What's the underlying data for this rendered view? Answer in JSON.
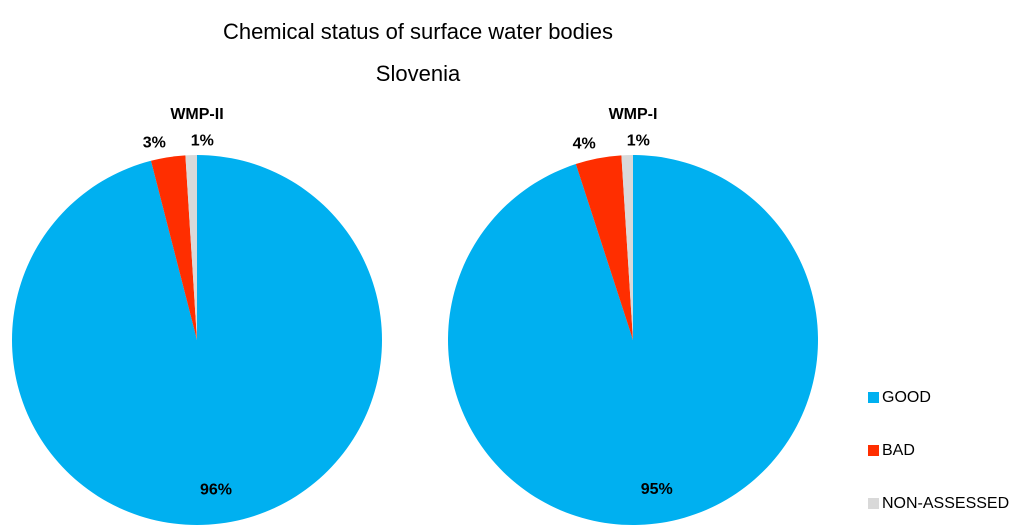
{
  "header": {
    "title": "Chemical status of surface water bodies",
    "subtitle": "Slovenia"
  },
  "chart_data": [
    {
      "type": "pie",
      "title": "WMP-II",
      "categories": [
        "GOOD",
        "BAD",
        "NON-ASSESSED"
      ],
      "values": [
        96,
        3,
        1
      ],
      "value_labels": [
        "96%",
        "3%",
        "1%"
      ],
      "colors": [
        "#00b0f0",
        "#ff2e00",
        "#d9d9d9"
      ],
      "legend": "right"
    },
    {
      "type": "pie",
      "title": "WMP-I",
      "categories": [
        "GOOD",
        "BAD",
        "NON-ASSESSED"
      ],
      "values": [
        95,
        4,
        1
      ],
      "value_labels": [
        "95%",
        "4%",
        "1%"
      ],
      "colors": [
        "#00b0f0",
        "#ff2e00",
        "#d9d9d9"
      ],
      "legend": "right"
    }
  ]
}
